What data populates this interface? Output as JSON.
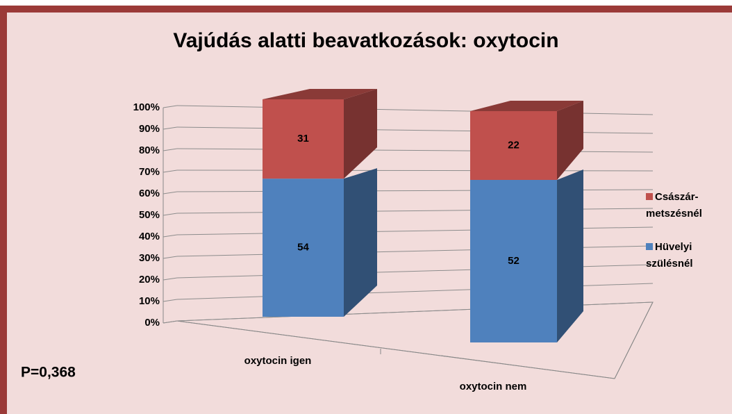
{
  "chart_data": {
    "type": "bar",
    "stacking": "percent",
    "title": "Vajúdás alatti beavatkozások: oxytocin",
    "annotation": "P=0,368",
    "categories": [
      "oxytocin igen",
      "oxytocin nem"
    ],
    "series": [
      {
        "name": "Hüvelyi szülésnél",
        "color": "#4f81bd",
        "values": [
          54,
          52
        ]
      },
      {
        "name": "Császár-metszésnél",
        "color": "#c0504d",
        "values": [
          31,
          22
        ]
      }
    ],
    "ylim": [
      0,
      100
    ],
    "yticks": [
      {
        "value": 0,
        "label": "0%"
      },
      {
        "value": 10,
        "label": "10%"
      },
      {
        "value": 20,
        "label": "20%"
      },
      {
        "value": 30,
        "label": "30%"
      },
      {
        "value": 40,
        "label": "40%"
      },
      {
        "value": 50,
        "label": "50%"
      },
      {
        "value": 60,
        "label": "60%"
      },
      {
        "value": 70,
        "label": "70%"
      },
      {
        "value": 80,
        "label": "80%"
      },
      {
        "value": 90,
        "label": "90%"
      },
      {
        "value": 100,
        "label": "100%"
      }
    ],
    "grid": true,
    "legend": "right"
  }
}
